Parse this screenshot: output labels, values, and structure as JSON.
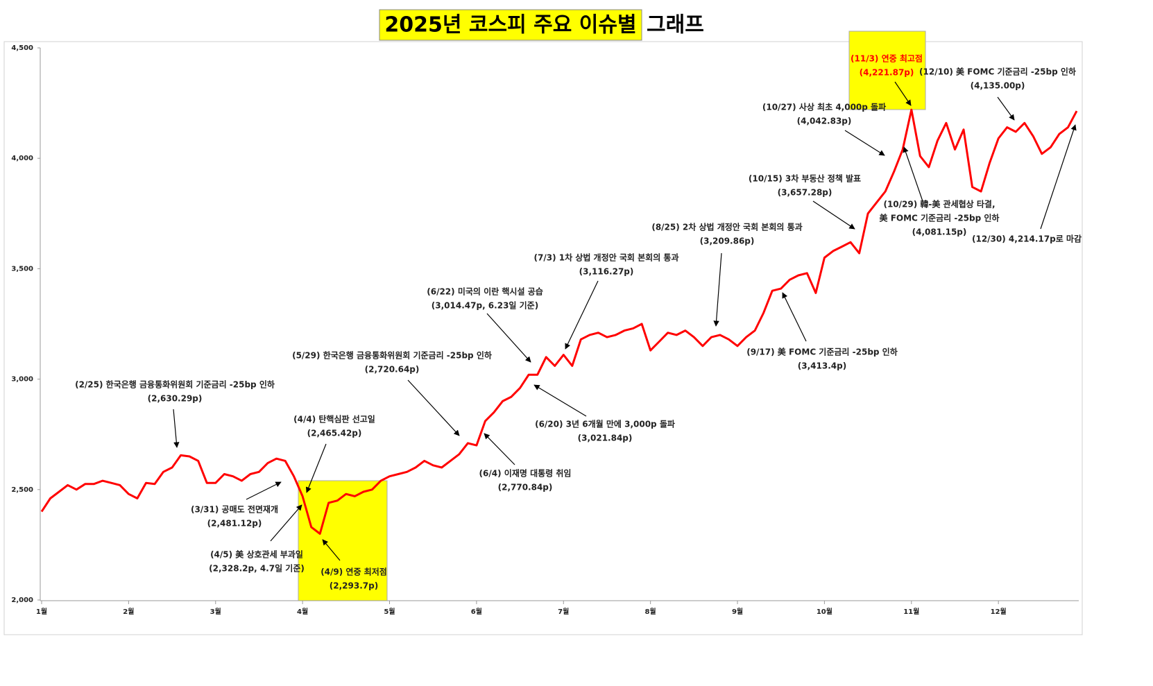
{
  "chart_data": {
    "type": "line",
    "title": {
      "highlighted": "2025년  코스피 주요 이슈별",
      "plain": "그래프"
    },
    "categories": [
      "1월",
      null,
      null,
      null,
      null,
      null,
      null,
      null,
      null,
      null,
      "2월",
      null,
      null,
      null,
      null,
      null,
      null,
      null,
      null,
      null,
      "3월",
      null,
      null,
      null,
      null,
      null,
      null,
      null,
      null,
      null,
      "4월",
      null,
      null,
      null,
      null,
      null,
      null,
      null,
      null,
      null,
      "5월",
      null,
      null,
      null,
      null,
      null,
      null,
      null,
      null,
      null,
      "6월",
      null,
      null,
      null,
      null,
      null,
      null,
      null,
      null,
      null,
      "7월",
      null,
      null,
      null,
      null,
      null,
      null,
      null,
      null,
      null,
      "8월",
      null,
      null,
      null,
      null,
      null,
      null,
      null,
      null,
      null,
      "9월",
      null,
      null,
      null,
      null,
      null,
      null,
      null,
      null,
      null,
      "10월",
      null,
      null,
      null,
      null,
      null,
      null,
      null,
      null,
      null,
      "11월",
      null,
      null,
      null,
      null,
      null,
      null,
      null,
      null,
      null,
      "12월",
      null,
      null,
      null,
      null,
      null,
      null,
      null,
      null,
      null
    ],
    "values": [
      2400,
      2460,
      2490,
      2520,
      2500,
      2525,
      2525,
      2540,
      2530,
      2520,
      2480,
      2460,
      2530,
      2525,
      2580,
      2600,
      2655,
      2650,
      2630,
      2530,
      2530,
      2570,
      2560,
      2540,
      2570,
      2580,
      2620,
      2640,
      2630,
      2560,
      2470,
      2330,
      2300,
      2440,
      2450,
      2480,
      2470,
      2490,
      2500,
      2540,
      2560,
      2570,
      2580,
      2600,
      2630,
      2610,
      2600,
      2630,
      2660,
      2710,
      2700,
      2810,
      2850,
      2900,
      2920,
      2960,
      3020,
      3020,
      3100,
      3060,
      3110,
      3060,
      3180,
      3200,
      3210,
      3190,
      3200,
      3220,
      3230,
      3250,
      3130,
      3170,
      3210,
      3200,
      3220,
      3190,
      3150,
      3190,
      3200,
      3180,
      3150,
      3190,
      3220,
      3300,
      3400,
      3410,
      3450,
      3470,
      3480,
      3390,
      3550,
      3580,
      3600,
      3620,
      3570,
      3750,
      3800,
      3850,
      3940,
      4040,
      4220,
      4010,
      3960,
      4080,
      4160,
      4040,
      4130,
      3870,
      3850,
      3980,
      4090,
      4140,
      4120,
      4160,
      4100,
      4020,
      4050,
      4110,
      4140,
      4214
    ],
    "color": "#ff0000",
    "ylim": [
      2000,
      4500
    ],
    "yticks": [
      {
        "value": 2000,
        "label": "2,000"
      },
      {
        "value": 2500,
        "label": "2,500"
      },
      {
        "value": 3000,
        "label": "3,000"
      },
      {
        "value": 3500,
        "label": "3,500"
      },
      {
        "value": 4000,
        "label": "4,000"
      },
      {
        "value": 4500,
        "label": "4,500"
      }
    ],
    "annotations": [
      {
        "lines": [
          "(2/25) 한국은행 금융통화위원회 기준금리 -25bp 인하",
          "(2,630.29p)"
        ]
      },
      {
        "lines": [
          "(3/31) 공매도 전면재개",
          "(2,481.12p)"
        ]
      },
      {
        "lines": [
          "(4/4) 탄핵심판 선고일",
          "(2,465.42p)"
        ]
      },
      {
        "lines": [
          "(4/5) 美 상호관세 부과일",
          "(2,328.2p, 4.7일 기준)"
        ]
      },
      {
        "lines": [
          "(4/9) 연중 최저점",
          "(2,293.7p)"
        ]
      },
      {
        "lines": [
          "(5/29) 한국은행 금융통화위원회 기준금리 -25bp 인하",
          "(2,720.64p)"
        ]
      },
      {
        "lines": [
          "(6/4) 이재명 대통령 취임",
          "(2,770.84p)"
        ]
      },
      {
        "lines": [
          "(6/22) 미국의 이란 핵시설 공습",
          "(3,014.47p, 6.23일 기준)"
        ]
      },
      {
        "lines": [
          "(6/20) 3년 6개월 만에 3,000p 돌파",
          "(3,021.84p)"
        ]
      },
      {
        "lines": [
          "(7/3) 1차 상법 개정안 국회 본회의 통과",
          "(3,116.27p)"
        ]
      },
      {
        "lines": [
          "(8/25) 2차 상법 개정안 국회 본회의 통과",
          "(3,209.86p)"
        ]
      },
      {
        "lines": [
          "(9/17) 美 FOMC 기준금리 -25bp 인하",
          "(3,413.4p)"
        ]
      },
      {
        "lines": [
          "(10/15) 3차 부동산 정책 발표",
          "(3,657.28p)"
        ]
      },
      {
        "lines": [
          "(10/27) 사상 최초 4,000p 돌파",
          "(4,042.83p)"
        ]
      },
      {
        "lines": [
          "(11/3) 연중 최고점",
          "(4,221.87p)"
        ],
        "color": "#ff0000"
      },
      {
        "lines": [
          "(10/29) 韓-美 관세협상 타결,",
          "美 FOMC 기준금리 -25bp 인하",
          "(4,081.15p)"
        ]
      },
      {
        "lines": [
          "(12/10) 美 FOMC 기준금리 -25bp 인하",
          "(4,135.00p)"
        ]
      },
      {
        "lines": [
          "(12/30) 4,214.17p로 마감"
        ]
      }
    ]
  }
}
